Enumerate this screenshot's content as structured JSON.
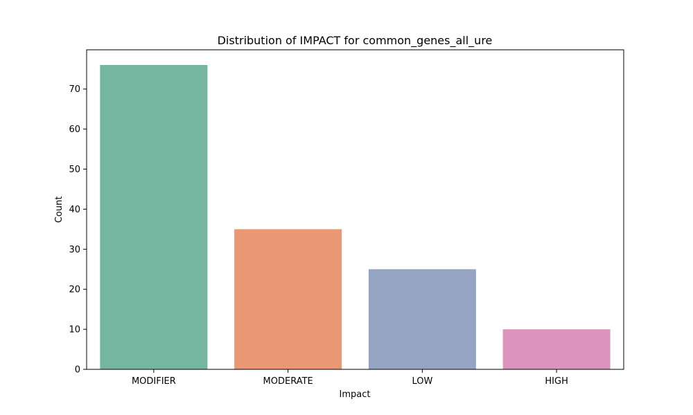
{
  "chart_data": {
    "type": "bar",
    "title": "Distribution of IMPACT for common_genes_all_ure",
    "xlabel": "Impact",
    "ylabel": "Count",
    "categories": [
      "MODIFIER",
      "MODERATE",
      "LOW",
      "HIGH"
    ],
    "values": [
      76,
      35,
      25,
      10
    ],
    "colors": [
      "#74b6a0",
      "#e99775",
      "#95a4c3",
      "#dc94bf"
    ],
    "ylim": [
      0,
      79.8
    ],
    "yticks": [
      0,
      10,
      20,
      30,
      40,
      50,
      60,
      70
    ],
    "grid": false,
    "legend": "none"
  }
}
